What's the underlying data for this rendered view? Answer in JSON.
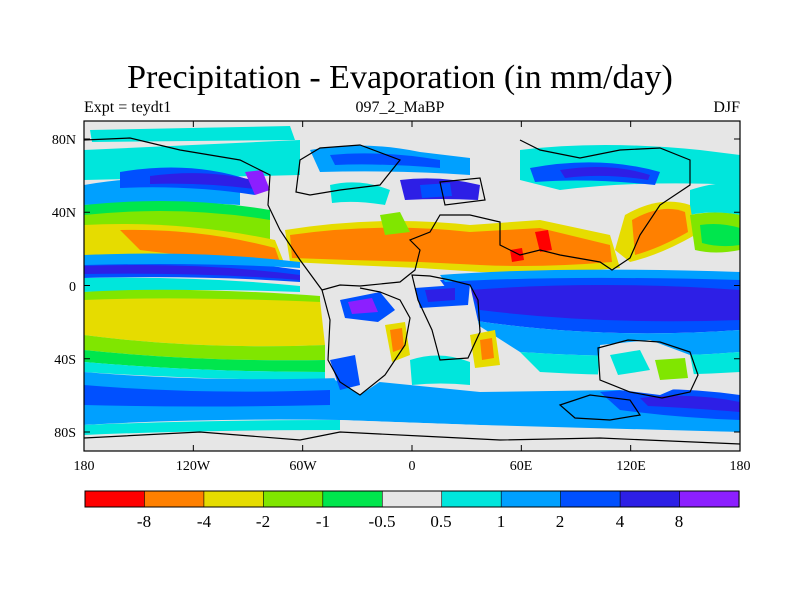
{
  "title": "Precipitation - Evaporation (in mm/day)",
  "subtitle_left": "Expt = teydt1",
  "subtitle_center": "097_2_MaBP",
  "subtitle_right": "DJF",
  "x_ticks": [
    "180",
    "120W",
    "60W",
    "0",
    "60E",
    "120E",
    "180"
  ],
  "y_ticks": [
    "80N",
    "40N",
    "0",
    "40S",
    "80S"
  ],
  "colorbar": {
    "colors": [
      "#ff0000",
      "#ff8000",
      "#e6dc00",
      "#80e600",
      "#00e64d",
      "#e6e6e6",
      "#00e6dc",
      "#00a0ff",
      "#0050ff",
      "#2d1fe6",
      "#8c1fff"
    ],
    "labels": [
      "-8",
      "-4",
      "-2",
      "-1",
      "-0.5",
      "0.5",
      "1",
      "2",
      "4",
      "8"
    ]
  },
  "palette": {
    "grey": "#e6e6e6",
    "green": "#00e64d",
    "lime": "#80e600",
    "yellow": "#e6dc00",
    "orange": "#ff8000",
    "red": "#ff0000",
    "cyan": "#00e6dc",
    "sky": "#00a0ff",
    "blue": "#0050ff",
    "navy": "#2d1fe6",
    "purple": "#8c1fff"
  }
}
